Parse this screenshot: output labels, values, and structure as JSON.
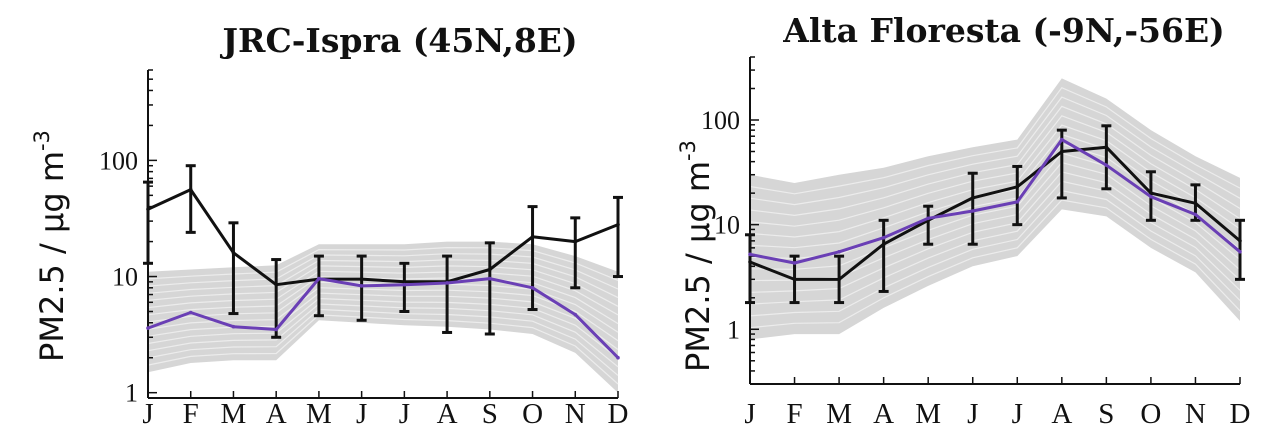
{
  "chart_data": [
    {
      "type": "line",
      "title": "JRC-Ispra (45N,8E)",
      "ylabel_main": "PM2.5 / μg m",
      "ylabel_sup": "-3",
      "yscale": "log",
      "ylim": [
        0.9,
        600
      ],
      "yticks": [
        1,
        10,
        100
      ],
      "ytick_labels": [
        "1",
        "10",
        "100"
      ],
      "categories": [
        "J",
        "F",
        "M",
        "A",
        "M",
        "J",
        "J",
        "A",
        "S",
        "O",
        "N",
        "D"
      ],
      "ensemble_band": {
        "lower": [
          1.5,
          1.8,
          1.9,
          1.9,
          4.2,
          4.0,
          3.8,
          3.7,
          3.5,
          3.2,
          2.2,
          1.0
        ],
        "upper": [
          11,
          11.5,
          12,
          12.5,
          19,
          19,
          19,
          20,
          20,
          19,
          15,
          11
        ]
      },
      "series": [
        {
          "color": "#111111",
          "values": [
            38,
            56,
            16,
            8.5,
            9.5,
            9.5,
            9.0,
            9.0,
            11.5,
            22,
            20,
            28
          ],
          "err_low": [
            13,
            24,
            4.8,
            3.0,
            4.6,
            4.2,
            5.0,
            3.3,
            3.2,
            5.2,
            8.0,
            10
          ],
          "err_high": [
            65,
            90,
            29,
            14,
            15,
            15,
            13,
            15,
            19.5,
            40,
            32,
            48
          ]
        },
        {
          "color": "#6a3fb5",
          "values": [
            3.6,
            4.9,
            3.7,
            3.5,
            9.6,
            8.3,
            8.5,
            8.8,
            9.6,
            8.0,
            4.7,
            2.0
          ]
        }
      ]
    },
    {
      "type": "line",
      "title": "Alta Floresta (-9N,-56E)",
      "ylabel_main": "PM2.5 / μg m",
      "ylabel_sup": "-3",
      "yscale": "log",
      "ylim": [
        0.3,
        400
      ],
      "yticks": [
        1,
        10,
        100
      ],
      "ytick_labels": [
        "1",
        "10",
        "100"
      ],
      "categories": [
        "J",
        "F",
        "M",
        "A",
        "M",
        "J",
        "J",
        "A",
        "S",
        "O",
        "N",
        "D"
      ],
      "ensemble_band": {
        "lower": [
          0.8,
          0.9,
          0.9,
          1.6,
          2.6,
          4.0,
          5.0,
          14,
          12,
          6,
          3.5,
          1.2
        ],
        "upper": [
          30,
          25,
          30,
          35,
          45,
          55,
          65,
          250,
          160,
          80,
          45,
          28
        ]
      },
      "series": [
        {
          "color": "#111111",
          "values": [
            4.4,
            3.0,
            3.0,
            6.5,
            11,
            18,
            23,
            50,
            55,
            20,
            16,
            7.0
          ],
          "err_low": [
            1.8,
            1.8,
            1.8,
            2.3,
            6.5,
            6.5,
            10,
            18,
            22,
            11,
            11,
            3.0
          ],
          "err_high": [
            8,
            5,
            5,
            11,
            15,
            31,
            36,
            80,
            88,
            32,
            24,
            11
          ]
        },
        {
          "color": "#6a3fb5",
          "values": [
            5.2,
            4.3,
            5.5,
            7.5,
            11.5,
            13.5,
            16.5,
            65,
            37,
            18.5,
            12.5,
            5.5
          ]
        }
      ]
    }
  ]
}
